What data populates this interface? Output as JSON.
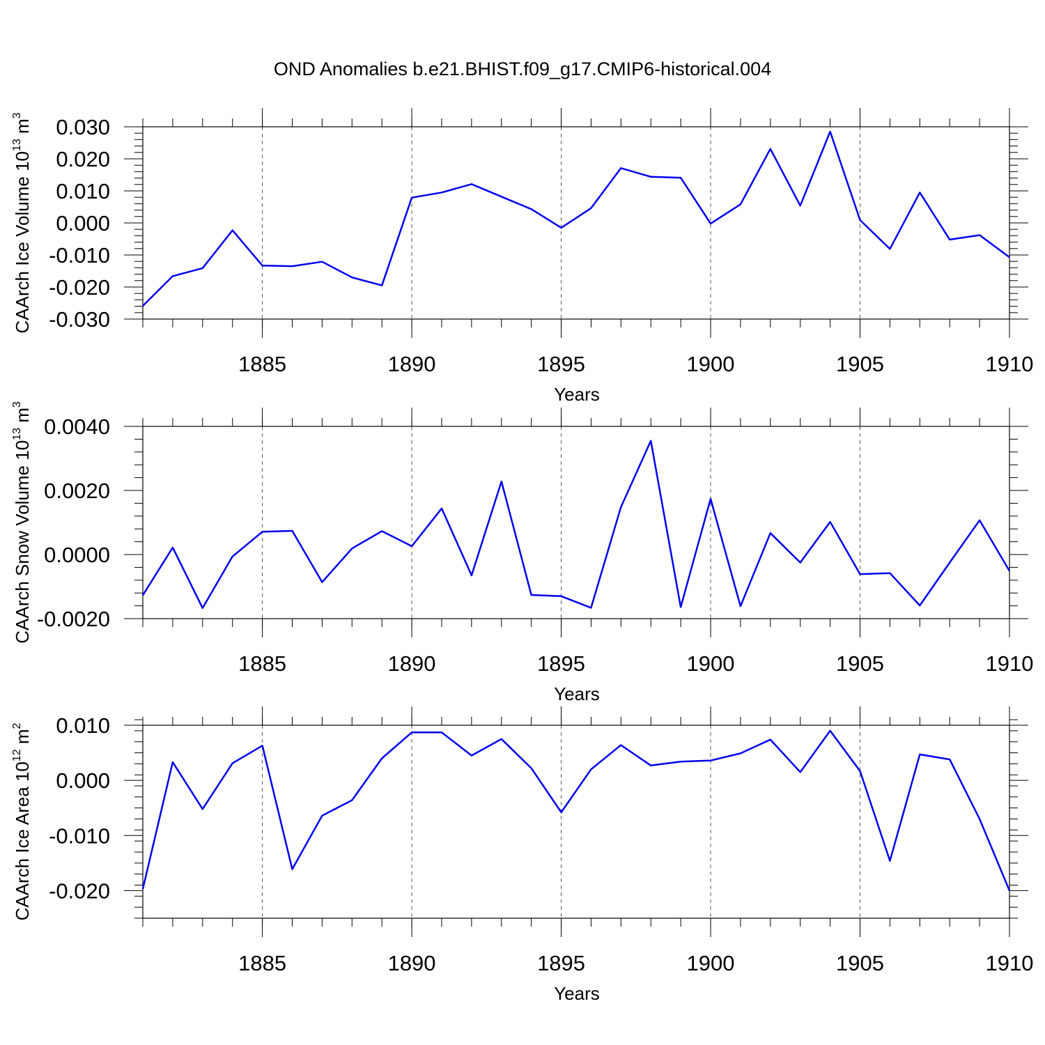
{
  "figure": {
    "title": "OND Anomalies b.e21.BHIST.f09_g17.CMIP6-historical.004",
    "line_color": "#0000ee"
  },
  "chart_data": [
    {
      "type": "line",
      "title": "OND Anomalies b.e21.BHIST.f09_g17.CMIP6-historical.004",
      "xlabel": "Years",
      "ylabel_text": "CAArch Ice Volume 10",
      "ylabel_exponent": "13",
      "ylabel_unit": " m",
      "ylabel_unit_exponent": "3",
      "xlim": [
        1881,
        1910
      ],
      "ylim": [
        -0.03,
        0.03
      ],
      "x_ticks": [
        1885,
        1890,
        1895,
        1900,
        1905,
        1910
      ],
      "x_tick_labels": [
        "1885",
        "1890",
        "1895",
        "1900",
        "1905",
        "1910"
      ],
      "y_ticks": [
        -0.03,
        -0.02,
        -0.01,
        0.0,
        0.01,
        0.02,
        0.03
      ],
      "y_tick_labels": [
        "-0.030",
        "-0.020",
        "-0.010",
        "0.000",
        "0.010",
        "0.020",
        "0.030"
      ],
      "y_minor_step": 0.002,
      "grid": "vertical dashed at major x ticks",
      "x": [
        1881,
        1882,
        1883,
        1884,
        1885,
        1886,
        1887,
        1888,
        1889,
        1890,
        1891,
        1892,
        1893,
        1894,
        1895,
        1896,
        1897,
        1898,
        1899,
        1900,
        1901,
        1902,
        1903,
        1904,
        1905,
        1906,
        1907,
        1908,
        1909,
        1910
      ],
      "values": [
        -0.0259,
        -0.0166,
        -0.0141,
        -0.0023,
        -0.0133,
        -0.0135,
        -0.0121,
        -0.017,
        -0.0195,
        0.0079,
        0.0095,
        0.0121,
        0.0082,
        0.0043,
        -0.0015,
        0.0046,
        0.0171,
        0.0144,
        0.0141,
        -0.0002,
        0.0058,
        0.0231,
        0.0054,
        0.0285,
        0.0009,
        -0.0081,
        0.0095,
        -0.0052,
        -0.0038,
        -0.0107
      ]
    },
    {
      "type": "line",
      "xlabel": "Years",
      "ylabel_text": "CAArch Snow Volume 10",
      "ylabel_exponent": "13",
      "ylabel_unit": " m",
      "ylabel_unit_exponent": "3",
      "xlim": [
        1881,
        1910
      ],
      "ylim": [
        -0.002,
        0.004
      ],
      "x_ticks": [
        1885,
        1890,
        1895,
        1900,
        1905,
        1910
      ],
      "x_tick_labels": [
        "1885",
        "1890",
        "1895",
        "1900",
        "1905",
        "1910"
      ],
      "y_ticks": [
        -0.002,
        0.0,
        0.002,
        0.004
      ],
      "y_tick_labels": [
        "-0.0020",
        "0.0000",
        "0.0020",
        "0.0040"
      ],
      "y_minor_step": 0.0004,
      "grid": "vertical dashed at major x ticks",
      "x": [
        1881,
        1882,
        1883,
        1884,
        1885,
        1886,
        1887,
        1888,
        1889,
        1890,
        1891,
        1892,
        1893,
        1894,
        1895,
        1896,
        1897,
        1898,
        1899,
        1900,
        1901,
        1902,
        1903,
        1904,
        1905,
        1906,
        1907,
        1908,
        1909,
        1910
      ],
      "values": [
        -0.00127,
        0.00022,
        -0.00167,
        -6e-05,
        0.00071,
        0.00074,
        -0.00086,
        0.00019,
        0.00073,
        0.00026,
        0.00144,
        -0.00065,
        0.00228,
        -0.00126,
        -0.0013,
        -0.00166,
        0.00148,
        0.00355,
        -0.00164,
        0.00174,
        -0.00161,
        0.00067,
        -0.00025,
        0.00102,
        -0.00061,
        -0.00058,
        -0.00159,
        -0.00025,
        0.00107,
        -0.00051
      ]
    },
    {
      "type": "line",
      "xlabel": "Years",
      "ylabel_text": "CAArch Ice Area 10",
      "ylabel_exponent": "12",
      "ylabel_unit": " m",
      "ylabel_unit_exponent": "2",
      "xlim": [
        1881,
        1910
      ],
      "ylim": [
        -0.025,
        0.01
      ],
      "x_ticks": [
        1885,
        1890,
        1895,
        1900,
        1905,
        1910
      ],
      "x_tick_labels": [
        "1885",
        "1890",
        "1895",
        "1900",
        "1905",
        "1910"
      ],
      "y_ticks": [
        -0.02,
        -0.01,
        0.0,
        0.01
      ],
      "y_tick_labels": [
        "-0.020",
        "-0.010",
        "0.000",
        "0.010"
      ],
      "y_minor_step": 0.002,
      "grid": "vertical dashed at major x ticks",
      "x": [
        1881,
        1882,
        1883,
        1884,
        1885,
        1886,
        1887,
        1888,
        1889,
        1890,
        1891,
        1892,
        1893,
        1894,
        1895,
        1896,
        1897,
        1898,
        1899,
        1900,
        1901,
        1902,
        1903,
        1904,
        1905,
        1906,
        1907,
        1908,
        1909,
        1910
      ],
      "values": [
        -0.0197,
        0.0033,
        -0.0052,
        0.0031,
        0.0063,
        -0.0161,
        -0.0064,
        -0.0036,
        0.004,
        0.0087,
        0.0087,
        0.0045,
        0.0075,
        0.0022,
        -0.0058,
        0.002,
        0.0064,
        0.0027,
        0.0034,
        0.0036,
        0.0049,
        0.0074,
        0.0015,
        0.009,
        0.0017,
        -0.0146,
        0.0047,
        0.0038,
        -0.007,
        -0.02
      ]
    }
  ]
}
